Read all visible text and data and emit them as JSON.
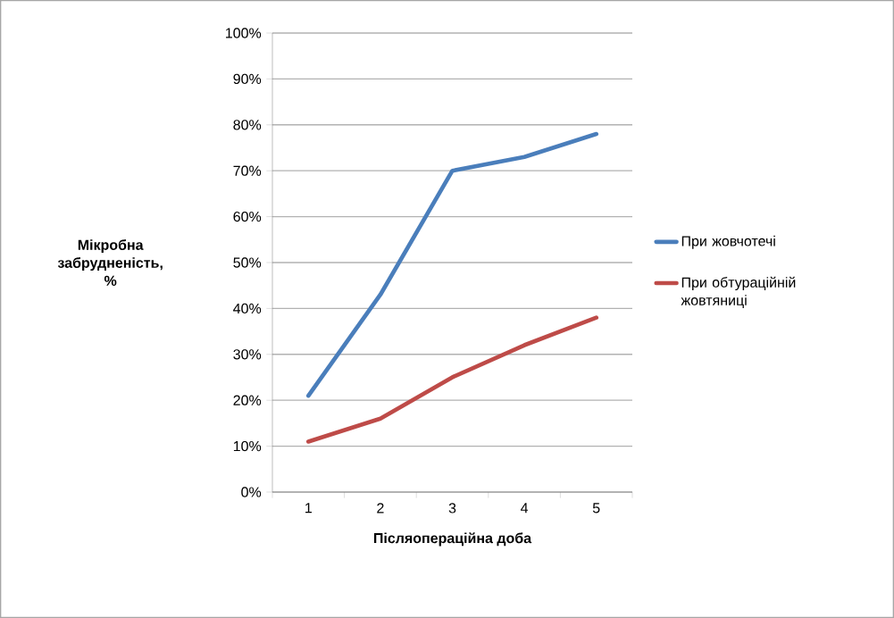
{
  "chart_data": {
    "type": "line",
    "xlabel": "Післяопераційна доба",
    "ylabel": "Мікробна забрудненість, %",
    "categories": [
      "1",
      "2",
      "3",
      "4",
      "5"
    ],
    "series": [
      {
        "name": "При жовчотечі",
        "color": "#4a7ebb",
        "values": [
          21,
          43,
          70,
          73,
          78
        ]
      },
      {
        "name": "При обтураційній жовтяниці",
        "color": "#be4b48",
        "values": [
          11,
          16,
          25,
          32,
          38
        ]
      }
    ],
    "ylim": [
      0,
      100
    ],
    "yticks": [
      {
        "value": 0,
        "label": "0%"
      },
      {
        "value": 10,
        "label": "10%"
      },
      {
        "value": 20,
        "label": "20%"
      },
      {
        "value": 30,
        "label": "30%"
      },
      {
        "value": 40,
        "label": "40%"
      },
      {
        "value": 50,
        "label": "50%"
      },
      {
        "value": 60,
        "label": "60%"
      },
      {
        "value": 70,
        "label": "70%"
      },
      {
        "value": 80,
        "label": "80%"
      },
      {
        "value": 90,
        "label": "90%"
      },
      {
        "value": 100,
        "label": "100%"
      }
    ],
    "grid": "y",
    "legend": "right",
    "marker": "none",
    "line_style": "solid"
  }
}
